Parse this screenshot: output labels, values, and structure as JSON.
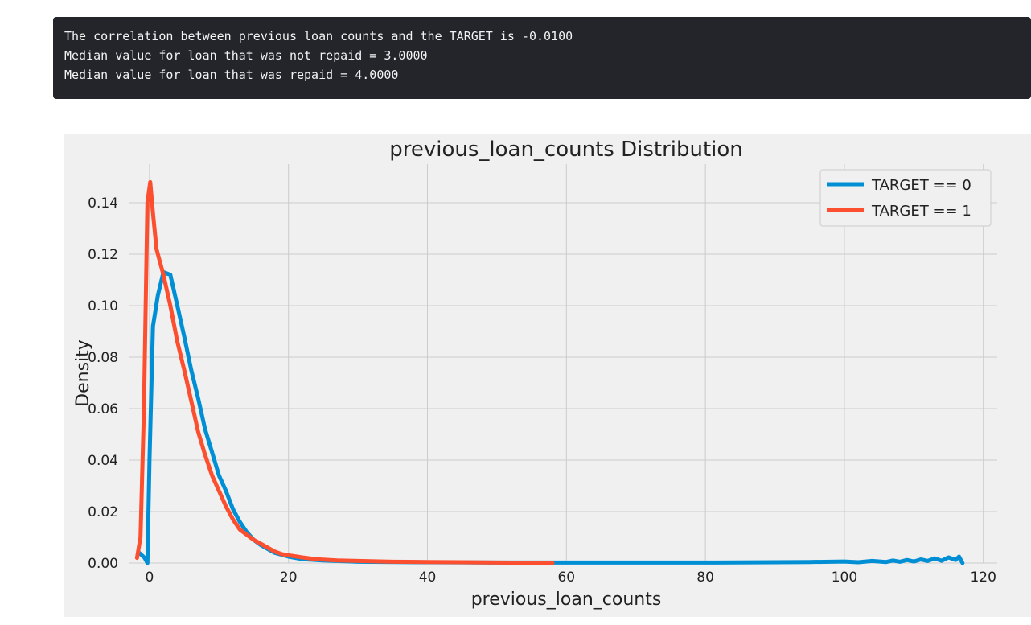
{
  "output": {
    "lines": [
      "The correlation between previous_loan_counts and the TARGET is -0.0100",
      "Median value for loan that was not repaid = 3.0000",
      "Median value for loan that was repaid = 4.0000"
    ]
  },
  "colors": {
    "output_background": "#23252a",
    "output_text": "#f3f3f3",
    "figure_background": "#f0f0f0",
    "grid": "#cbcbcb",
    "series_target0": "#008fd5",
    "series_target1": "#fc4f30"
  },
  "chart_data": {
    "type": "line",
    "title": "previous_loan_counts Distribution",
    "xlabel": "previous_loan_counts",
    "ylabel": "Density",
    "xlim": [
      -3,
      122
    ],
    "ylim": [
      0,
      0.155
    ],
    "xticks": [
      0,
      20,
      40,
      60,
      80,
      100,
      120
    ],
    "yticks": [
      0.0,
      0.02,
      0.04,
      0.06,
      0.08,
      0.1,
      0.12,
      0.14
    ],
    "ytick_labels": [
      "0.00",
      "0.02",
      "0.04",
      "0.06",
      "0.08",
      "0.10",
      "0.12",
      "0.14"
    ],
    "grid": true,
    "legend": "top-right",
    "series": [
      {
        "name": "TARGET == 0",
        "color": "#008fd5",
        "x": [
          -1.5,
          -0.7,
          -0.3,
          0.0,
          0.5,
          1.2,
          2.0,
          3.0,
          4.0,
          5.0,
          6.0,
          7.0,
          8.0,
          9.0,
          10.0,
          11.0,
          12.0,
          13.0,
          14.0,
          15.0,
          16.0,
          17.0,
          18.0,
          20.0,
          22.0,
          25.0,
          30.0,
          40.0,
          50.0,
          60.0,
          70.0,
          80.0,
          90.0,
          95.0,
          100.0,
          102.0,
          104.0,
          106.0,
          107.0,
          108.0,
          109.0,
          110.0,
          111.0,
          112.0,
          113.0,
          114.0,
          115.0,
          116.0,
          116.5,
          117.0
        ],
        "y": [
          0.004,
          0.002,
          0.0,
          0.04,
          0.092,
          0.104,
          0.113,
          0.112,
          0.1,
          0.088,
          0.075,
          0.064,
          0.052,
          0.043,
          0.034,
          0.028,
          0.021,
          0.016,
          0.012,
          0.009,
          0.007,
          0.0055,
          0.004,
          0.0025,
          0.0015,
          0.001,
          0.0005,
          0.0003,
          0.0002,
          0.0002,
          0.0002,
          0.0002,
          0.0003,
          0.0004,
          0.0006,
          0.0003,
          0.0008,
          0.0004,
          0.001,
          0.0005,
          0.0012,
          0.0006,
          0.0014,
          0.0008,
          0.0018,
          0.0009,
          0.0022,
          0.0012,
          0.0025,
          0.0
        ]
      },
      {
        "name": "TARGET == 1",
        "color": "#fc4f30",
        "x": [
          -1.8,
          -1.3,
          -0.8,
          -0.3,
          0.1,
          0.5,
          1.0,
          1.5,
          2.0,
          3.0,
          4.0,
          5.0,
          6.0,
          7.0,
          8.0,
          9.0,
          10.0,
          11.0,
          12.0,
          13.0,
          14.0,
          15.0,
          16.0,
          17.0,
          18.0,
          19.0,
          20.0,
          22.0,
          24.0,
          27.0,
          30.0,
          35.0,
          40.0,
          45.0,
          50.0,
          55.0,
          58.0
        ],
        "y": [
          0.002,
          0.01,
          0.06,
          0.14,
          0.148,
          0.136,
          0.122,
          0.117,
          0.112,
          0.1,
          0.086,
          0.075,
          0.063,
          0.051,
          0.042,
          0.034,
          0.028,
          0.022,
          0.017,
          0.013,
          0.011,
          0.009,
          0.0075,
          0.006,
          0.0045,
          0.0035,
          0.003,
          0.0022,
          0.0015,
          0.001,
          0.0008,
          0.0005,
          0.0004,
          0.0003,
          0.0002,
          0.0001,
          0.0
        ]
      }
    ]
  }
}
